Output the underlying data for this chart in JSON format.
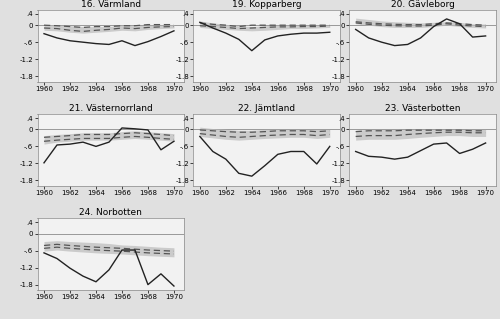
{
  "counties": [
    {
      "title": "16. Värmland",
      "id": "16"
    },
    {
      "title": "19. Kopparberg",
      "id": "19"
    },
    {
      "title": "20. Gävleborg",
      "id": "20"
    },
    {
      "title": "21. Västernorrland",
      "id": "21"
    },
    {
      "title": "22. Jämtland",
      "id": "22"
    },
    {
      "title": "23. Västerbotten",
      "id": "23"
    },
    {
      "title": "24. Norbotten",
      "id": "24"
    }
  ],
  "years": [
    1960,
    1961,
    1962,
    1963,
    1964,
    1965,
    1966,
    1967,
    1968,
    1969,
    1970
  ],
  "actual": {
    "16": [
      -0.3,
      -0.45,
      -0.55,
      -0.6,
      -0.65,
      -0.68,
      -0.55,
      -0.72,
      -0.58,
      -0.4,
      -0.2
    ],
    "19": [
      0.1,
      -0.1,
      -0.28,
      -0.5,
      -0.9,
      -0.52,
      -0.38,
      -0.32,
      -0.28,
      -0.28,
      -0.25
    ],
    "20": [
      -0.15,
      -0.45,
      -0.6,
      -0.72,
      -0.68,
      -0.45,
      -0.05,
      0.22,
      0.05,
      -0.42,
      -0.38
    ],
    "21": [
      -1.18,
      -0.55,
      -0.52,
      -0.45,
      -0.6,
      -0.45,
      0.05,
      0.02,
      -0.02,
      -0.72,
      -0.42
    ],
    "22": [
      -0.25,
      -0.78,
      -1.05,
      -1.55,
      -1.65,
      -1.28,
      -0.88,
      -0.78,
      -0.78,
      -1.22,
      -0.6
    ],
    "23": [
      -0.78,
      -0.95,
      -0.98,
      -1.05,
      -0.98,
      -0.75,
      -0.52,
      -0.48,
      -0.85,
      -0.7,
      -0.48
    ],
    "24": [
      -0.68,
      -0.88,
      -1.22,
      -1.5,
      -1.7,
      -1.28,
      -0.58,
      -0.58,
      -1.8,
      -1.42,
      -1.85
    ]
  },
  "ci55_upper": {
    "16": [
      0.02,
      0.0,
      -0.02,
      -0.05,
      -0.05,
      -0.05,
      0.0,
      -0.02,
      0.0,
      0.0,
      0.02
    ],
    "19": [
      0.15,
      0.08,
      0.03,
      -0.02,
      -0.05,
      -0.02,
      0.0,
      0.0,
      0.0,
      0.0,
      0.0
    ],
    "20": [
      0.25,
      0.2,
      0.15,
      0.12,
      0.1,
      0.08,
      0.1,
      0.12,
      0.1,
      0.05,
      0.04
    ],
    "21": [
      -0.22,
      -0.18,
      -0.15,
      -0.12,
      -0.12,
      -0.12,
      -0.08,
      -0.05,
      -0.08,
      -0.12,
      -0.15
    ],
    "22": [
      0.08,
      0.03,
      0.0,
      -0.03,
      -0.03,
      0.0,
      0.0,
      0.0,
      0.0,
      0.0,
      0.0
    ],
    "23": [
      -0.03,
      0.0,
      0.0,
      0.0,
      0.0,
      0.0,
      0.0,
      0.0,
      0.0,
      0.0,
      0.0
    ],
    "24": [
      -0.28,
      -0.25,
      -0.28,
      -0.3,
      -0.32,
      -0.35,
      -0.4,
      -0.42,
      -0.45,
      -0.48,
      -0.5
    ]
  },
  "ci55_lower": {
    "16": [
      -0.18,
      -0.2,
      -0.25,
      -0.28,
      -0.25,
      -0.22,
      -0.18,
      -0.2,
      -0.15,
      -0.12,
      -0.1
    ],
    "19": [
      -0.08,
      -0.12,
      -0.15,
      -0.18,
      -0.2,
      -0.18,
      -0.15,
      -0.12,
      -0.12,
      -0.1,
      -0.08
    ],
    "20": [
      0.05,
      0.0,
      -0.05,
      -0.08,
      -0.08,
      -0.08,
      -0.05,
      0.0,
      -0.05,
      -0.08,
      -0.1
    ],
    "21": [
      -0.52,
      -0.45,
      -0.42,
      -0.38,
      -0.38,
      -0.38,
      -0.35,
      -0.32,
      -0.35,
      -0.38,
      -0.42
    ],
    "22": [
      -0.25,
      -0.3,
      -0.35,
      -0.38,
      -0.35,
      -0.32,
      -0.3,
      -0.28,
      -0.28,
      -0.32,
      -0.28
    ],
    "23": [
      -0.38,
      -0.35,
      -0.35,
      -0.35,
      -0.32,
      -0.28,
      -0.25,
      -0.22,
      -0.22,
      -0.25,
      -0.25
    ],
    "24": [
      -0.62,
      -0.58,
      -0.62,
      -0.65,
      -0.68,
      -0.7,
      -0.72,
      -0.75,
      -0.78,
      -0.8,
      -0.82
    ]
  },
  "ci65_upper": {
    "16": [
      0.0,
      -0.02,
      -0.05,
      -0.08,
      -0.05,
      -0.05,
      -0.02,
      -0.02,
      0.02,
      0.02,
      0.02
    ],
    "19": [
      0.08,
      0.03,
      0.0,
      -0.05,
      0.0,
      0.0,
      0.0,
      0.0,
      0.0,
      0.0,
      0.0
    ],
    "20": [
      0.12,
      0.08,
      0.05,
      0.03,
      0.02,
      0.02,
      0.05,
      0.08,
      0.05,
      0.02,
      0.0
    ],
    "21": [
      -0.28,
      -0.25,
      -0.22,
      -0.18,
      -0.18,
      -0.18,
      -0.15,
      -0.12,
      -0.15,
      -0.18,
      -0.22
    ],
    "22": [
      -0.02,
      -0.05,
      -0.08,
      -0.1,
      -0.1,
      -0.08,
      -0.05,
      -0.05,
      -0.05,
      -0.08,
      -0.05
    ],
    "23": [
      -0.08,
      -0.05,
      -0.05,
      -0.05,
      -0.03,
      -0.03,
      -0.03,
      -0.03,
      -0.03,
      -0.05,
      -0.05
    ],
    "24": [
      -0.42,
      -0.38,
      -0.42,
      -0.45,
      -0.48,
      -0.5,
      -0.52,
      -0.55,
      -0.58,
      -0.6,
      -0.62
    ]
  },
  "ci65_lower": {
    "16": [
      -0.1,
      -0.12,
      -0.18,
      -0.22,
      -0.18,
      -0.15,
      -0.1,
      -0.12,
      -0.08,
      -0.06,
      -0.05
    ],
    "19": [
      -0.02,
      -0.05,
      -0.08,
      -0.12,
      -0.1,
      -0.08,
      -0.06,
      -0.06,
      -0.05,
      -0.05,
      -0.03
    ],
    "20": [
      0.08,
      0.03,
      0.0,
      -0.02,
      -0.03,
      -0.03,
      0.0,
      0.05,
      0.0,
      -0.03,
      -0.05
    ],
    "21": [
      -0.42,
      -0.38,
      -0.35,
      -0.32,
      -0.32,
      -0.32,
      -0.28,
      -0.25,
      -0.28,
      -0.32,
      -0.35
    ],
    "22": [
      -0.15,
      -0.2,
      -0.25,
      -0.28,
      -0.25,
      -0.22,
      -0.2,
      -0.18,
      -0.18,
      -0.22,
      -0.18
    ],
    "23": [
      -0.25,
      -0.22,
      -0.22,
      -0.22,
      -0.18,
      -0.15,
      -0.12,
      -0.1,
      -0.1,
      -0.12,
      -0.12
    ],
    "24": [
      -0.52,
      -0.48,
      -0.52,
      -0.55,
      -0.58,
      -0.6,
      -0.62,
      -0.65,
      -0.68,
      -0.7,
      -0.72
    ]
  },
  "ylim": [
    -2.0,
    0.55
  ],
  "yticks": [
    0.4,
    0.0,
    -0.6,
    -1.2,
    -1.8
  ],
  "ytick_labels": [
    ".4",
    "0",
    "-.6",
    "-1.2",
    "-1.8"
  ],
  "xticks": [
    1960,
    1962,
    1964,
    1966,
    1968,
    1970
  ],
  "fig_bg": "#e0e0e0",
  "plot_bg": "#f2f2f2",
  "actual_color": "#222222",
  "ci55_color": "#bbbbbb",
  "ci65_color": "#555555",
  "zero_line_color": "#999999",
  "spine_color": "#888888"
}
